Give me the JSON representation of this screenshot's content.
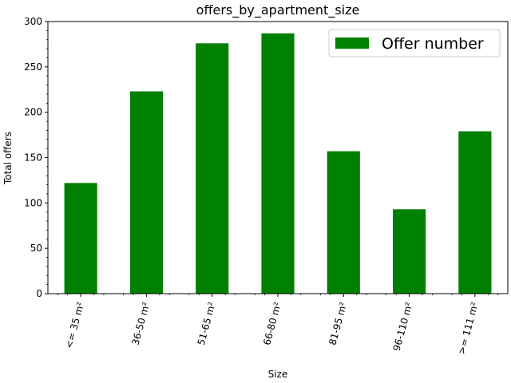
{
  "chart_data": {
    "type": "bar",
    "title": "offers_by_apartment_size",
    "xlabel": "Size",
    "ylabel": "Total offers",
    "categories": [
      "<= 35 m²",
      "36-50 m²",
      "51-65 m²",
      "66-80 m²",
      "81-95 m²",
      "96-110 m²",
      ">= 111 m²"
    ],
    "series": [
      {
        "name": "Offer number",
        "values": [
          122,
          223,
          276,
          287,
          157,
          93,
          179
        ],
        "color": "#008000"
      }
    ],
    "ylim": [
      0,
      300
    ],
    "yticks": [
      0,
      50,
      100,
      150,
      200,
      250,
      300
    ],
    "yticklabels": [
      "0",
      "50",
      "100",
      "150",
      "200",
      "250",
      "300"
    ],
    "grid": false,
    "legend_position": "top-right",
    "xtick_rotation": "75"
  }
}
